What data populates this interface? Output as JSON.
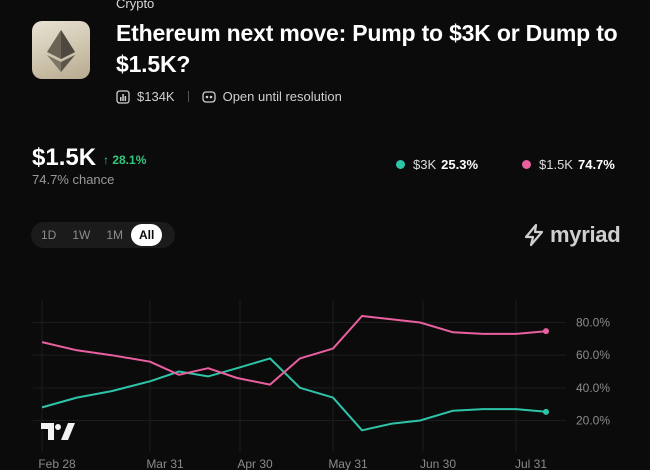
{
  "market": {
    "category": "Crypto",
    "title": "Ethereum next move: Pump to $3K or Dump to $1.5K?",
    "volume": "$134K",
    "status": "Open until resolution"
  },
  "summary": {
    "price": "$1.5K",
    "delta": "↑ 28.1%",
    "chance": "74.7% chance"
  },
  "legend": [
    {
      "label": "$3K",
      "value": "25.3%",
      "color": "#2ec4a9"
    },
    {
      "label": "$1.5K",
      "value": "74.7%",
      "color": "#e9609f"
    }
  ],
  "ranges": {
    "d1": "1D",
    "w1": "1W",
    "m1": "1M",
    "all": "All"
  },
  "brand": "myriad",
  "chart_data": {
    "type": "line",
    "x_ticks": [
      "Feb 28",
      "Mar 31",
      "Apr 30",
      "May 31",
      "Jun 30",
      "Jul 31"
    ],
    "y_ticks": [
      "80.0%",
      "60.0%",
      "40.0%",
      "20.0%"
    ],
    "ylim": [
      0,
      100
    ],
    "series": [
      {
        "name": "$3K",
        "color": "#2ec4a9",
        "x": [
          "Feb 28",
          "Mar 10",
          "Mar 20",
          "Mar 31",
          "Apr 10",
          "Apr 20",
          "Apr 30",
          "May 10",
          "May 20",
          "May 31",
          "Jun 10",
          "Jun 20",
          "Jun 30",
          "Jul 10",
          "Jul 20",
          "Jul 31",
          "Aug 10"
        ],
        "values": [
          28,
          34,
          38,
          44,
          50,
          47,
          52,
          58,
          40,
          34,
          14,
          18,
          20,
          26,
          27,
          27,
          25.3
        ]
      },
      {
        "name": "$1.5K",
        "color": "#e9609f",
        "x": [
          "Feb 28",
          "Mar 10",
          "Mar 20",
          "Mar 31",
          "Apr 10",
          "Apr 20",
          "Apr 30",
          "May 10",
          "May 20",
          "May 31",
          "Jun 10",
          "Jun 20",
          "Jun 30",
          "Jul 10",
          "Jul 20",
          "Jul 31",
          "Aug 10"
        ],
        "values": [
          68,
          63,
          60,
          56,
          48,
          52,
          46,
          42,
          58,
          64,
          84,
          82,
          80,
          74,
          73,
          73,
          74.7
        ]
      }
    ]
  }
}
